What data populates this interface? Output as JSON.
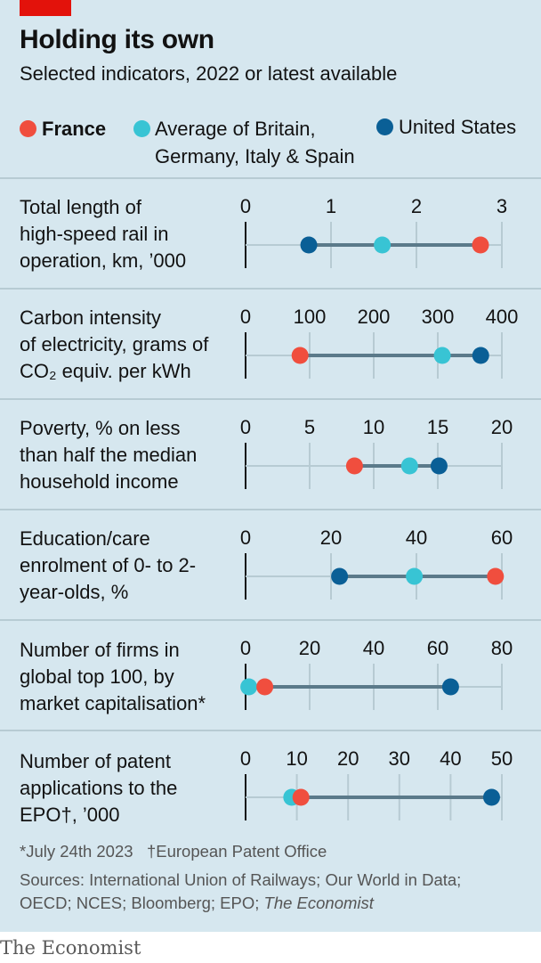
{
  "title": "Holding its own",
  "subtitle": "Selected indicators, 2022 or latest available",
  "legend": [
    {
      "label": "France",
      "color": "#f04e3e"
    },
    {
      "label": "Average of Britain,\nGermany, Italy & Spain",
      "color": "#38c4d4"
    },
    {
      "label": "United States",
      "color": "#0a5f96"
    }
  ],
  "chart_data": {
    "type": "dot",
    "series_names": [
      "France",
      "Average of Britain, Germany, Italy & Spain",
      "United States"
    ],
    "panels": [
      {
        "label": "Total length of\nhigh-speed rail in\noperation, km, ’000",
        "ticks": [
          "0",
          "1",
          "2",
          "3"
        ],
        "xlim": [
          0,
          3
        ],
        "values": {
          "france": 2.75,
          "average": 1.6,
          "us": 0.74
        }
      },
      {
        "label": "Carbon intensity\nof electricity, grams of\nCO₂ equiv. per kWh",
        "ticks": [
          "0",
          "100",
          "200",
          "300",
          "400"
        ],
        "xlim": [
          0,
          400
        ],
        "values": {
          "france": 85,
          "average": 307,
          "us": 367
        }
      },
      {
        "label": "Poverty, % on less\nthan half the median\nhousehold income",
        "ticks": [
          "0",
          "5",
          "10",
          "15",
          "20"
        ],
        "xlim": [
          0,
          20
        ],
        "values": {
          "france": 8.5,
          "average": 12.8,
          "us": 15.1
        }
      },
      {
        "label": "Education/care\nenrolment of 0- to 2-\nyear-olds, %",
        "ticks": [
          "0",
          "20",
          "40",
          "60"
        ],
        "xlim": [
          0,
          60
        ],
        "values": {
          "france": 58.5,
          "average": 39.5,
          "us": 22
        }
      },
      {
        "label": "Number of firms in\nglobal top 100, by\nmarket capitalisation*",
        "ticks": [
          "0",
          "20",
          "40",
          "60",
          "80"
        ],
        "xlim": [
          0,
          80
        ],
        "values": {
          "france": 6,
          "average": 1,
          "us": 64
        }
      },
      {
        "label": "Number of patent\napplications to the\nEPO†, ’000",
        "ticks": [
          "0",
          "10",
          "20",
          "30",
          "40",
          "50"
        ],
        "xlim": [
          0,
          50
        ],
        "values": {
          "france": 10.8,
          "average": 9,
          "us": 48
        }
      }
    ]
  },
  "footnotes": {
    "asterisk": "*July 24th 2023",
    "dagger": "†European Patent Office",
    "sources": "Sources: International Union of Railways; Our World in Data;",
    "sources_2": "OECD; NCES; Bloomberg; EPO; ",
    "sources_publication": "The Economist"
  },
  "brand": "The Economist",
  "colors": {
    "background": "#d6e7ef",
    "line": "#5b7a8a",
    "grid": "#b7cbd3",
    "accent": "#e3120b"
  }
}
